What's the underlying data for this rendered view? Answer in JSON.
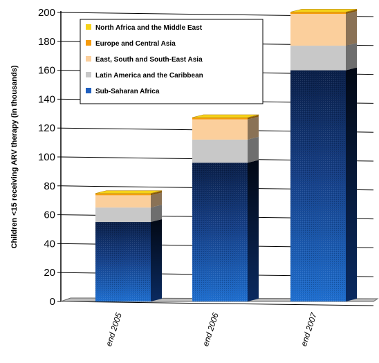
{
  "chart_data": {
    "type": "bar",
    "stacked": true,
    "three_d": true,
    "title": "",
    "xlabel": "",
    "ylabel": "Children <15 receiving ARV therapy (in thousands)",
    "ylim": [
      0,
      200
    ],
    "yticks": [
      0,
      20,
      40,
      60,
      80,
      100,
      120,
      140,
      160,
      180,
      200
    ],
    "grid": true,
    "legend_position": "top-left",
    "categories": [
      "end 2005",
      "end 2006",
      "end 2007"
    ],
    "series": [
      {
        "name": "Sub-Saharan Africa",
        "color": "#1f5fbf",
        "values": [
          55,
          96,
          160
        ]
      },
      {
        "name": "Latin America and the Caribbean",
        "color": "#c8c8c8",
        "values": [
          10,
          16,
          17
        ]
      },
      {
        "name": "East, South and South-East Asia",
        "color": "#fbcf9c",
        "values": [
          8.5,
          14,
          22
        ]
      },
      {
        "name": "Europe and Central Asia",
        "color": "#f59a0c",
        "values": [
          1,
          1,
          1
        ]
      },
      {
        "name": "North Africa and the Middle East",
        "color": "#f5d21a",
        "values": [
          0.3,
          0.3,
          0.3
        ]
      }
    ],
    "legend_order": [
      "North Africa and the Middle East",
      "Europe and Central Asia",
      "East, South and South-East Asia",
      "Latin America and the Caribbean",
      "Sub-Saharan Africa"
    ]
  }
}
